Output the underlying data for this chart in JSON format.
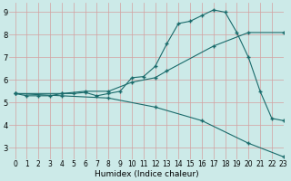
{
  "background_color": "#cceae8",
  "grid_color": "#d4a0a0",
  "line_color": "#1a6b6b",
  "line1_x": [
    0,
    1,
    2,
    3,
    4,
    5,
    6,
    7,
    8,
    9,
    10,
    11,
    12,
    13,
    14,
    15,
    16,
    17,
    18,
    19,
    20,
    21,
    22,
    23
  ],
  "line1_y": [
    5.4,
    5.3,
    5.3,
    5.3,
    5.4,
    5.4,
    5.45,
    5.3,
    5.4,
    5.5,
    6.1,
    6.15,
    6.6,
    7.6,
    8.5,
    8.6,
    8.85,
    9.1,
    9.0,
    8.1,
    7.0,
    5.5,
    4.3,
    4.2
  ],
  "line2_x": [
    0,
    4,
    6,
    8,
    10,
    12,
    13,
    17,
    20,
    23
  ],
  "line2_y": [
    5.4,
    5.4,
    5.5,
    5.5,
    5.9,
    6.1,
    6.4,
    7.5,
    8.1,
    8.1
  ],
  "line3_x": [
    0,
    4,
    8,
    12,
    16,
    20,
    23
  ],
  "line3_y": [
    5.4,
    5.3,
    5.2,
    4.8,
    4.2,
    3.2,
    2.6
  ],
  "xlabel": "Humidex (Indice chaleur)",
  "xlim": [
    -0.5,
    23
  ],
  "ylim": [
    2.5,
    9.4
  ],
  "yticks": [
    3,
    4,
    5,
    6,
    7,
    8,
    9
  ],
  "xticks": [
    0,
    1,
    2,
    3,
    4,
    5,
    6,
    7,
    8,
    9,
    10,
    11,
    12,
    13,
    14,
    15,
    16,
    17,
    18,
    19,
    20,
    21,
    22,
    23
  ],
  "xtick_labels": [
    "0",
    "1",
    "2",
    "3",
    "4",
    "5",
    "6",
    "7",
    "8",
    "9",
    "10",
    "11",
    "12",
    "13",
    "14",
    "15",
    "16",
    "17",
    "18",
    "19",
    "20",
    "21",
    "22",
    "23"
  ],
  "marker": "+",
  "markersize": 3,
  "linewidth": 0.8,
  "xlabel_fontsize": 6.5,
  "tick_fontsize": 5.5,
  "ytick_fontsize": 6
}
